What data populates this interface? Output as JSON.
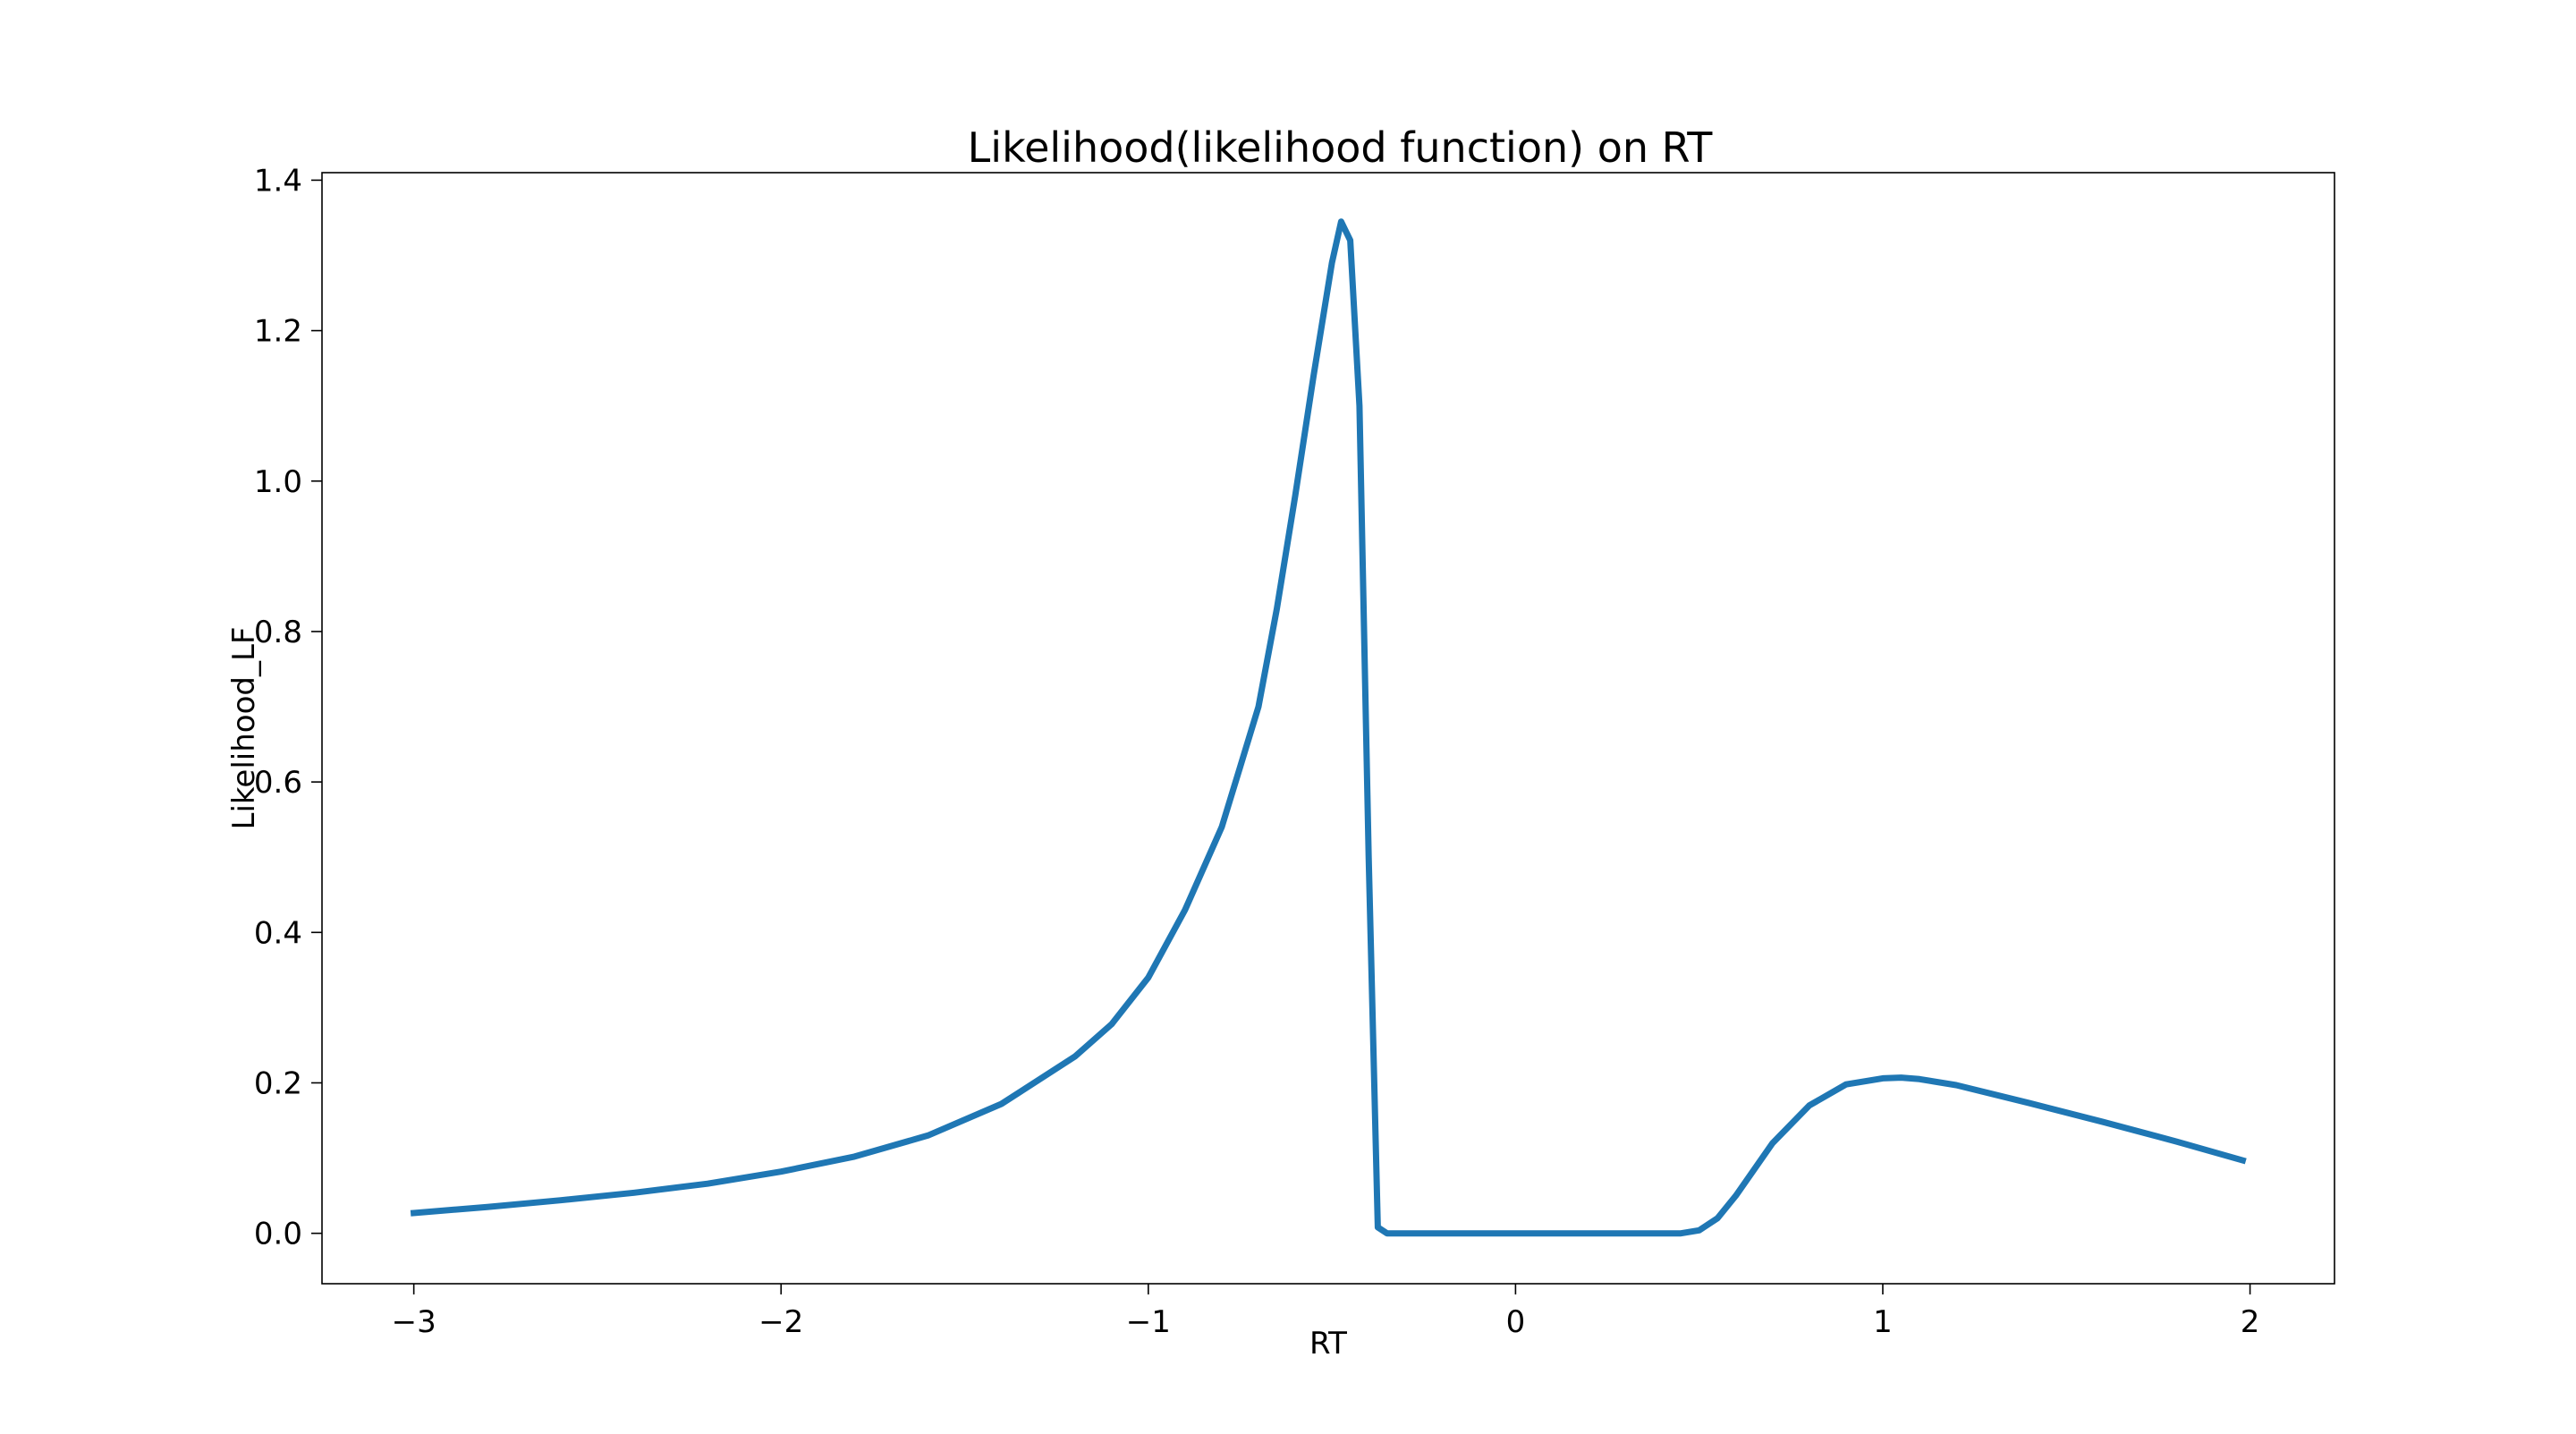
{
  "chart_data": {
    "type": "line",
    "title": "Likelihood(likelihood function) on RT",
    "xlabel": "RT",
    "ylabel": "Likelihood_LF",
    "xlim": [
      -3.25,
      2.23
    ],
    "ylim": [
      -0.067,
      1.41
    ],
    "xticks": [
      -3,
      -2,
      -1,
      0,
      1,
      2
    ],
    "xtick_labels": [
      "−3",
      "−2",
      "−1",
      "0",
      "1",
      "2"
    ],
    "yticks": [
      0.0,
      0.2,
      0.4,
      0.6,
      0.8,
      1.0,
      1.2,
      1.4
    ],
    "ytick_labels": [
      "0.0",
      "0.2",
      "0.4",
      "0.6",
      "0.8",
      "1.0",
      "1.2",
      "1.4"
    ],
    "grid": false,
    "line_color": "#1f77b4",
    "series": [
      {
        "x": [
          -3.0,
          -2.8,
          -2.6,
          -2.4,
          -2.2,
          -2.0,
          -1.8,
          -1.6,
          -1.4,
          -1.2,
          -1.1,
          -1.0,
          -0.9,
          -0.8,
          -0.75,
          -0.7,
          -0.65,
          -0.6,
          -0.55,
          -0.5,
          -0.475,
          -0.45,
          -0.425,
          -0.4,
          -0.375,
          -0.35,
          -0.3,
          0.0,
          0.3,
          0.45,
          0.5,
          0.55,
          0.6,
          0.7,
          0.8,
          0.9,
          1.0,
          1.05,
          1.1,
          1.2,
          1.4,
          1.6,
          1.8,
          1.98
        ],
        "y": [
          0.027,
          0.035,
          0.044,
          0.054,
          0.066,
          0.082,
          0.102,
          0.13,
          0.172,
          0.235,
          0.278,
          0.34,
          0.43,
          0.54,
          0.62,
          0.7,
          0.83,
          0.98,
          1.14,
          1.29,
          1.345,
          1.32,
          1.1,
          0.5,
          0.008,
          0.0,
          0.0,
          0.0,
          0.0,
          0.0,
          0.004,
          0.02,
          0.05,
          0.12,
          0.17,
          0.198,
          0.206,
          0.207,
          0.205,
          0.197,
          0.173,
          0.148,
          0.122,
          0.097
        ]
      }
    ]
  }
}
